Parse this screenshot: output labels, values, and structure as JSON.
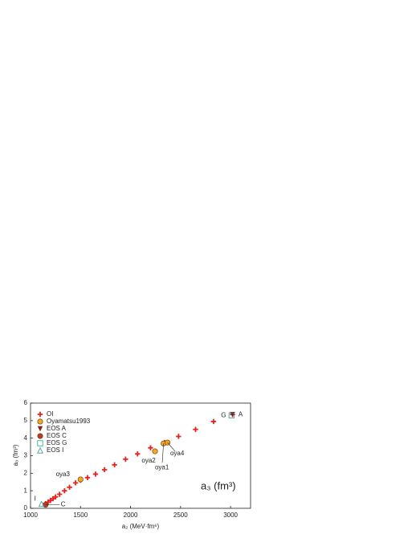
{
  "chart_data": {
    "type": "scatter",
    "x_label": "a₂ (MeV·fm⁶)",
    "y_label": "a₃ (fm³)",
    "annotation": "a₃ (fm³)",
    "xlim": [
      1000,
      3200
    ],
    "ylim": [
      0,
      6
    ],
    "xticks": [
      1000,
      1500,
      2000,
      2500,
      3000
    ],
    "yticks": [
      0,
      1,
      2,
      3,
      4,
      5,
      6
    ],
    "series": [
      {
        "name": "OI",
        "marker": "plus",
        "color": "#e8231f",
        "x": [
          1150,
          1175,
          1200,
          1225,
          1250,
          1290,
          1340,
          1390,
          1450,
          1500,
          1570,
          1650,
          1740,
          1840,
          1950,
          2070,
          2200,
          2340,
          2480,
          2650,
          2830,
          3020
        ],
        "values": [
          0.27,
          0.35,
          0.45,
          0.55,
          0.65,
          0.8,
          1.0,
          1.2,
          1.45,
          1.6,
          1.75,
          1.95,
          2.2,
          2.48,
          2.8,
          3.1,
          3.45,
          3.75,
          4.1,
          4.5,
          4.95,
          5.35
        ]
      },
      {
        "name": "Oyamatsu1993",
        "marker": "circle",
        "color": "#f5a623",
        "x": [
          1500,
          2245,
          2330,
          2370
        ],
        "values": [
          1.65,
          3.25,
          3.7,
          3.75
        ],
        "labels": [
          "oya3",
          "oya2",
          "oya1",
          "oya4"
        ]
      },
      {
        "name": "EOS A",
        "marker": "triangle-down",
        "color": "#8b1a1a",
        "x": [
          3020
        ],
        "values": [
          5.35
        ],
        "labels": [
          "A"
        ]
      },
      {
        "name": "EOS C",
        "marker": "circle",
        "color": "#c0392b",
        "x": [
          1150
        ],
        "values": [
          0.2
        ],
        "labels": [
          "C"
        ]
      },
      {
        "name": "EOS G",
        "marker": "square",
        "color": "#2a9d8f",
        "x": [
          3010
        ],
        "values": [
          5.3
        ],
        "labels": [
          "G"
        ]
      },
      {
        "name": "EOS I",
        "marker": "triangle-up",
        "color": "#2a9d8f",
        "x": [
          1110
        ],
        "values": [
          0.25
        ],
        "labels": [
          "I"
        ]
      }
    ]
  }
}
